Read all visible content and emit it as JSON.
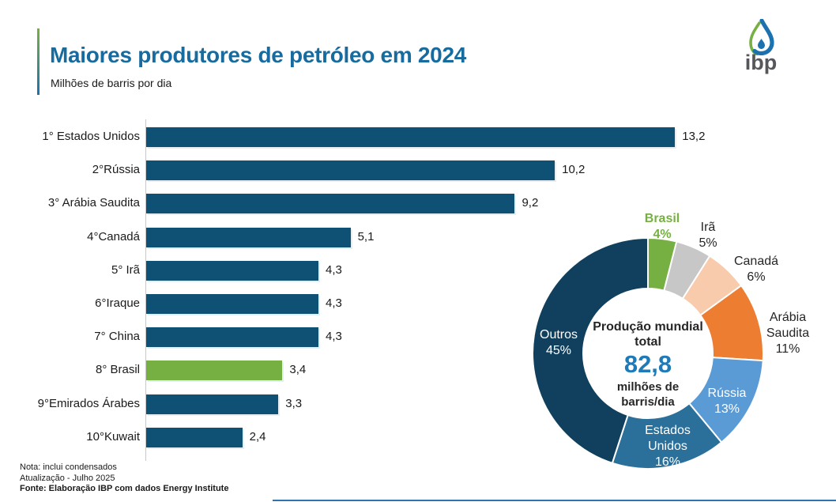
{
  "header": {
    "title": "Maiores produtores de petróleo em 2024",
    "subtitle": "Milhões de barris por dia",
    "logo_text": "ibp"
  },
  "colors": {
    "title": "#176B9E",
    "accent_green": "#76B043",
    "accent_blue": "#1C72AE",
    "bar_blue": "#0F5174",
    "highlight_green": "#76B043",
    "center_value_blue": "#1F7AB8"
  },
  "chart_data": [
    {
      "type": "bar",
      "orientation": "horizontal",
      "title": "Maiores produtores de petróleo em 2024",
      "xlabel": "Milhões de barris por dia",
      "xlim": [
        0,
        13.6
      ],
      "grid": false,
      "categories": [
        "1° Estados Unidos",
        "2°Rússia",
        "3° Arábia Saudita",
        "4°Canadá",
        "5° Irã",
        "6°Iraque",
        "7° China",
        "8° Brasil",
        "9°Emirados Árabes",
        "10°Kuwait"
      ],
      "values": [
        13.2,
        10.2,
        9.2,
        5.1,
        4.3,
        4.3,
        4.3,
        3.4,
        3.3,
        2.4
      ],
      "value_labels": [
        "13,2",
        "10,2",
        "9,2",
        "5,1",
        "4,3",
        "4,3",
        "4,3",
        "3,4",
        "3,3",
        "2,4"
      ],
      "bar_color": "#0F5174",
      "highlight_index": 7,
      "highlight_color": "#76B043"
    },
    {
      "type": "pie",
      "donut": true,
      "legend_position": "around",
      "center": {
        "title": "Produção mundial total",
        "value": "82,8",
        "unit": "milhões de barris/dia"
      },
      "slices": [
        {
          "label": "Brasil",
          "pct": 4,
          "pct_label": "4%",
          "color": "#76B043",
          "label_color": "#76B043",
          "label_bold": true
        },
        {
          "label": "Irã",
          "pct": 5,
          "pct_label": "5%",
          "color": "#C7C7C7",
          "label_color": "#262626",
          "label_bold": false
        },
        {
          "label": "Canadá",
          "pct": 6,
          "pct_label": "6%",
          "color": "#F8CBAD",
          "label_color": "#262626",
          "label_bold": false
        },
        {
          "label": "Arábia Saudita",
          "pct": 11,
          "pct_label": "11%",
          "color": "#ED7D31",
          "label_color": "#262626",
          "label_bold": false
        },
        {
          "label": "Rússia",
          "pct": 13,
          "pct_label": "13%",
          "color": "#5B9BD5",
          "label_color": "#FFFFFF",
          "label_bold": false
        },
        {
          "label": "Estados Unidos",
          "pct": 16,
          "pct_label": "16%",
          "color": "#2B709B",
          "label_color": "#FFFFFF",
          "label_bold": false
        },
        {
          "label": "Outros",
          "pct": 45,
          "pct_label": "45%",
          "color": "#11405E",
          "label_color": "#FFFFFF",
          "label_bold": false
        }
      ]
    }
  ],
  "footer": {
    "note": "Nota: inclui condensados",
    "update": "Atualização - Julho 2025",
    "source": "Fonte: Elaboração IBP com dados Energy Institute"
  }
}
